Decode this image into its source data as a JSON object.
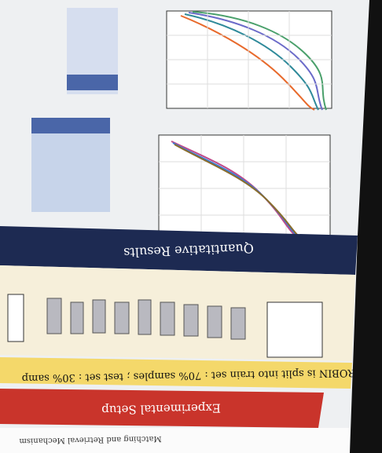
{
  "poster": {
    "section_results": "Quantitative Results",
    "section_setup": "Experimental Setup",
    "setup_text": "ROBIN is split into train set : 70% samples ; test set : 30% samp",
    "section_matching": "Matching and Retrieval Mechanism"
  }
}
